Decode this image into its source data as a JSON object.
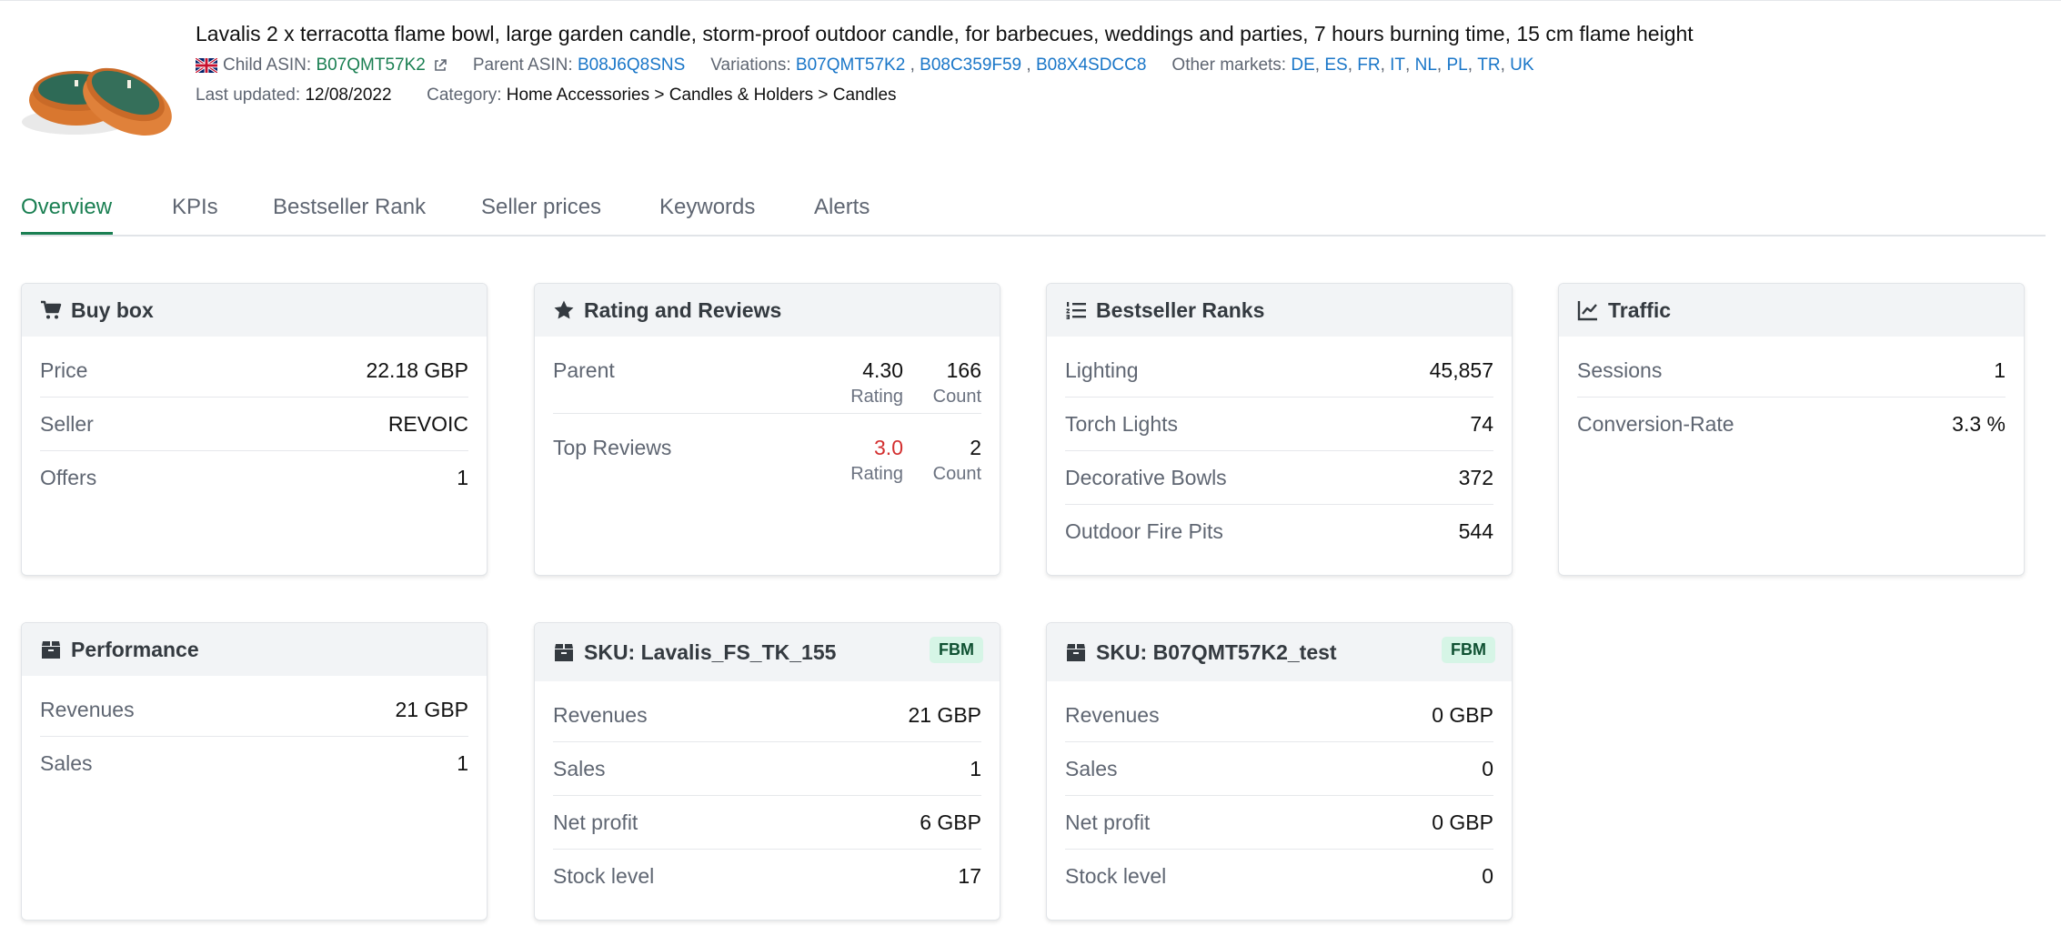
{
  "product": {
    "title": "Lavalis 2 x terracotta flame bowl, large garden candle, storm-proof outdoor candle, for barbecues, weddings and parties, 7 hours burning time, 15 cm flame height",
    "child_asin_label": "Child ASIN:",
    "child_asin": "B07QMT57K2",
    "parent_asin_label": "Parent ASIN:",
    "parent_asin": "B08J6Q8SNS",
    "variations_label": "Variations:",
    "variations": [
      "B07QMT57K2",
      "B08C359F59",
      "B08X4SDCC8"
    ],
    "other_markets_label": "Other markets:",
    "other_markets": [
      "DE",
      "ES",
      "FR",
      "IT",
      "NL",
      "PL",
      "TR",
      "UK"
    ],
    "last_updated_label": "Last updated:",
    "last_updated": "12/08/2022",
    "category_label": "Category:",
    "category": "Home Accessories > Candles & Holders > Candles"
  },
  "tabs": [
    {
      "label": "Overview",
      "active": true
    },
    {
      "label": "KPIs"
    },
    {
      "label": "Bestseller Rank"
    },
    {
      "label": "Seller prices"
    },
    {
      "label": "Keywords"
    },
    {
      "label": "Alerts"
    }
  ],
  "buy_box": {
    "title": "Buy box",
    "rows": [
      {
        "label": "Price",
        "value": "22.18 GBP"
      },
      {
        "label": "Seller",
        "value": "REVOIC"
      },
      {
        "label": "Offers",
        "value": "1"
      }
    ]
  },
  "ratings": {
    "title": "Rating and Reviews",
    "rating_sub": "Rating",
    "count_sub": "Count",
    "rows": [
      {
        "label": "Parent",
        "rating": "4.30",
        "count": "166"
      },
      {
        "label": "Top Reviews",
        "rating": "3.0",
        "count": "2"
      }
    ]
  },
  "bestseller": {
    "title": "Bestseller Ranks",
    "rows": [
      {
        "label": "Lighting",
        "value": "45,857"
      },
      {
        "label": "Torch Lights",
        "value": "74"
      },
      {
        "label": "Decorative Bowls",
        "value": "372"
      },
      {
        "label": "Outdoor Fire Pits",
        "value": "544"
      }
    ]
  },
  "traffic": {
    "title": "Traffic",
    "rows": [
      {
        "label": "Sessions",
        "value": "1"
      },
      {
        "label": "Conversion-Rate",
        "value": "3.3 %"
      }
    ]
  },
  "performance": {
    "title": "Performance",
    "rows": [
      {
        "label": "Revenues",
        "value": "21 GBP"
      },
      {
        "label": "Sales",
        "value": "1"
      }
    ]
  },
  "sku1": {
    "title": "SKU: Lavalis_FS_TK_155",
    "badge": "FBM",
    "rows": [
      {
        "label": "Revenues",
        "value": "21 GBP"
      },
      {
        "label": "Sales",
        "value": "1"
      },
      {
        "label": "Net profit",
        "value": "6 GBP"
      },
      {
        "label": "Stock level",
        "value": "17"
      }
    ]
  },
  "sku2": {
    "title": "SKU: B07QMT57K2_test",
    "badge": "FBM",
    "rows": [
      {
        "label": "Revenues",
        "value": "0 GBP"
      },
      {
        "label": "Sales",
        "value": "0"
      },
      {
        "label": "Net profit",
        "value": "0 GBP"
      },
      {
        "label": "Stock level",
        "value": "0"
      }
    ]
  },
  "colors": {
    "accent_green": "#1a7f52",
    "link_blue": "#1976c8",
    "low_rating_red": "#d32f2f",
    "badge_bg": "#d6f5e6"
  }
}
